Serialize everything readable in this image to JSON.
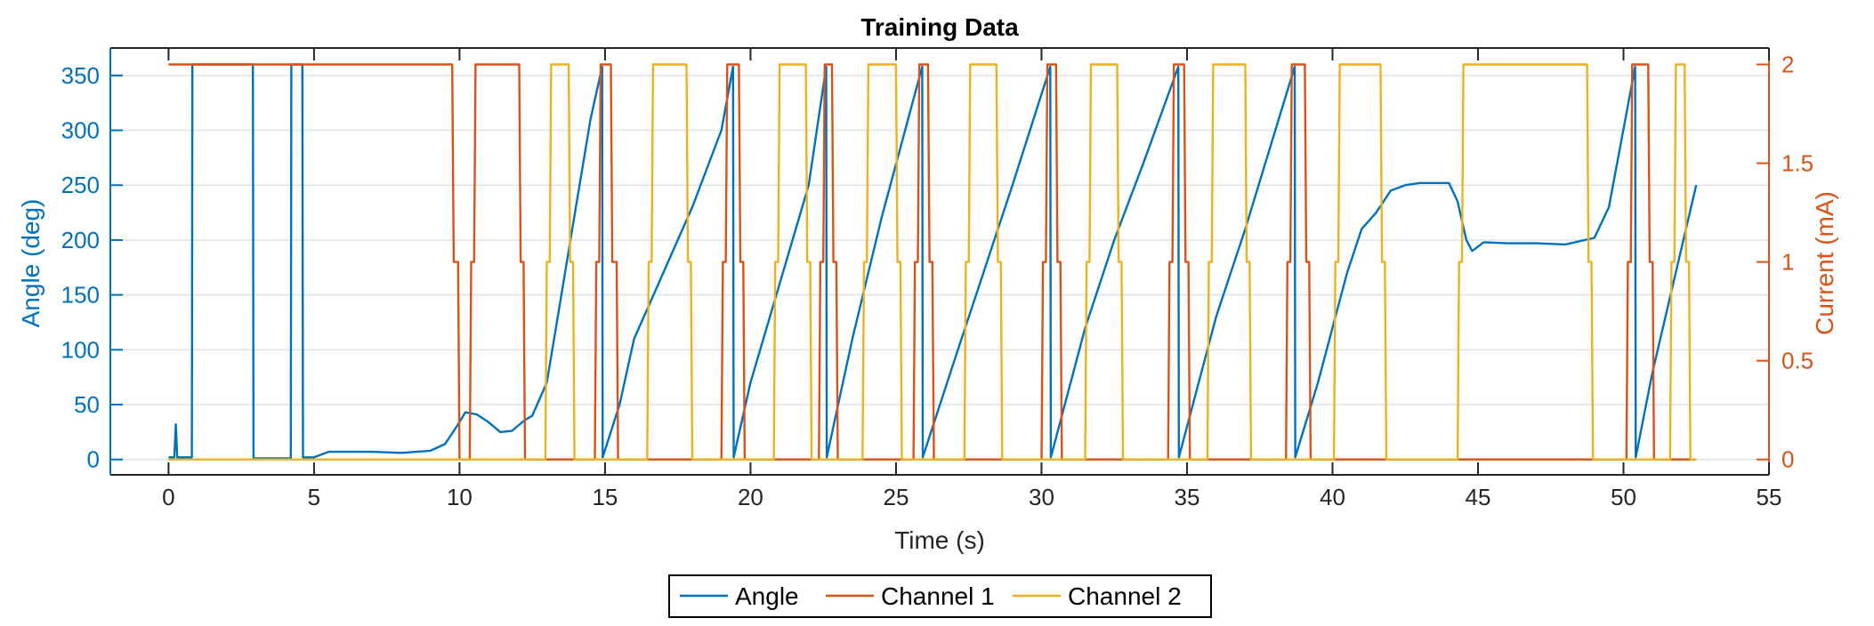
{
  "chart_data": {
    "type": "line",
    "title": "Training Data",
    "xlabel": "Time (s)",
    "ylabel_left": "Angle (deg)",
    "ylabel_right": "Current (mA)",
    "xlim": [
      -2,
      55
    ],
    "ylim_left": [
      -14,
      375
    ],
    "ylim_right": [
      -0.0778,
      2.0833
    ],
    "xticks": [
      0,
      5,
      10,
      15,
      20,
      25,
      30,
      35,
      40,
      45,
      50,
      55
    ],
    "yticks_left": [
      0,
      50,
      100,
      150,
      200,
      250,
      300,
      350
    ],
    "yticks_right": [
      0,
      0.5,
      1,
      1.5,
      2
    ],
    "yticks_right_labels": [
      "0",
      "0.5",
      "1",
      "1.5",
      "2"
    ],
    "grid": "horizontal",
    "legend_position": "bottom-outside",
    "colors": {
      "angle": "#0072BD",
      "channel1": "#D95319",
      "channel2": "#EDB120",
      "axis": "#262626"
    },
    "series": [
      {
        "name": "Angle",
        "axis": "left",
        "x": [
          0,
          0.2,
          0.25,
          0.3,
          0.35,
          0.8,
          0.82,
          2.9,
          2.92,
          4.2,
          4.22,
          4.6,
          4.62,
          5.0,
          5.5,
          7.0,
          8.0,
          9.0,
          9.5,
          9.9,
          10.2,
          10.6,
          11.0,
          11.4,
          11.8,
          12.2,
          12.5,
          13.0,
          13.5,
          14.0,
          14.5,
          14.9,
          14.92,
          15.5,
          16.0,
          16.5,
          17.0,
          18.0,
          19.0,
          19.4,
          19.42,
          20.0,
          21.0,
          22.0,
          22.6,
          22.62,
          23.5,
          24.5,
          25.9,
          25.92,
          27.0,
          28.0,
          29.0,
          30.3,
          30.32,
          31.5,
          32.5,
          33.5,
          34.7,
          34.72,
          36.0,
          37.0,
          38.7,
          38.72,
          39.5,
          40.5,
          41.0,
          41.5,
          42.0,
          42.5,
          43.0,
          44.0,
          44.3,
          44.6,
          44.8,
          45.2,
          46.0,
          47.0,
          48.0,
          48.5,
          49.0,
          49.5,
          50.4,
          50.42,
          51.0,
          52.5
        ],
        "values": [
          2,
          2,
          32,
          2,
          2,
          2,
          360,
          360,
          1,
          1,
          360,
          360,
          2,
          2,
          7,
          7,
          6,
          8,
          14,
          30,
          43,
          41,
          34,
          25,
          26,
          35,
          40,
          70,
          150,
          230,
          310,
          358,
          2,
          50,
          110,
          140,
          170,
          230,
          300,
          358,
          2,
          70,
          160,
          250,
          358,
          2,
          110,
          220,
          358,
          2,
          90,
          170,
          250,
          358,
          2,
          120,
          200,
          270,
          358,
          2,
          130,
          210,
          358,
          2,
          70,
          170,
          210,
          225,
          245,
          250,
          252,
          252,
          235,
          200,
          190,
          198,
          197,
          197,
          196,
          199,
          202,
          230,
          358,
          2,
          80,
          250
        ]
      },
      {
        "name": "Channel 1",
        "axis": "right",
        "x": [
          0,
          9.75,
          9.8,
          9.95,
          10.0,
          10.35,
          10.4,
          10.5,
          10.55,
          12.05,
          12.1,
          12.2,
          12.25,
          14.65,
          14.7,
          14.8,
          14.85,
          15.2,
          15.25,
          15.4,
          15.45,
          19.0,
          19.05,
          19.15,
          19.2,
          19.6,
          19.65,
          19.75,
          19.8,
          22.35,
          22.4,
          22.5,
          22.55,
          22.8,
          22.85,
          22.95,
          23.0,
          25.6,
          25.65,
          25.75,
          25.8,
          26.1,
          26.15,
          26.25,
          26.3,
          30.0,
          30.05,
          30.15,
          30.2,
          30.5,
          30.55,
          30.65,
          30.7,
          34.35,
          34.4,
          34.5,
          34.55,
          34.9,
          34.95,
          35.05,
          35.1,
          38.4,
          38.45,
          38.55,
          38.6,
          39.05,
          39.1,
          39.2,
          39.25,
          50.1,
          50.15,
          50.25,
          50.3,
          50.85,
          50.9,
          51.0,
          51.05,
          52.5
        ],
        "values": [
          2,
          2,
          1,
          1,
          0,
          0,
          1,
          1,
          2,
          2,
          1,
          1,
          0,
          0,
          1,
          1,
          2,
          2,
          1,
          1,
          0,
          0,
          1,
          1,
          2,
          2,
          1,
          1,
          0,
          0,
          1,
          1,
          2,
          2,
          1,
          1,
          0,
          0,
          1,
          1,
          2,
          2,
          1,
          1,
          0,
          0,
          1,
          1,
          2,
          2,
          1,
          1,
          0,
          0,
          1,
          1,
          2,
          2,
          1,
          1,
          0,
          0,
          1,
          1,
          2,
          2,
          1,
          1,
          0,
          0,
          1,
          1,
          2,
          2,
          1,
          1,
          0,
          0
        ]
      },
      {
        "name": "Channel 2",
        "axis": "right",
        "x": [
          0,
          12.95,
          13.0,
          13.1,
          13.15,
          13.75,
          13.8,
          13.9,
          13.95,
          16.45,
          16.5,
          16.6,
          16.65,
          17.8,
          17.85,
          17.95,
          18.0,
          20.8,
          20.85,
          20.95,
          21.0,
          21.9,
          21.95,
          22.05,
          22.1,
          23.85,
          23.9,
          24.0,
          24.05,
          25.0,
          25.05,
          25.15,
          25.2,
          27.35,
          27.4,
          27.5,
          27.55,
          28.45,
          28.5,
          28.6,
          28.65,
          31.5,
          31.55,
          31.65,
          31.7,
          32.6,
          32.65,
          32.75,
          32.8,
          35.7,
          35.75,
          35.85,
          35.9,
          37.0,
          37.05,
          37.15,
          37.2,
          40.05,
          40.1,
          40.2,
          40.25,
          41.65,
          41.7,
          41.8,
          41.85,
          44.3,
          44.35,
          44.45,
          44.5,
          48.75,
          48.8,
          48.9,
          48.95,
          51.6,
          51.65,
          51.75,
          51.8,
          52.1,
          52.15,
          52.25,
          52.3,
          52.5
        ],
        "values": [
          0,
          0,
          1,
          1,
          2,
          2,
          1,
          1,
          0,
          0,
          1,
          1,
          2,
          2,
          1,
          1,
          0,
          0,
          1,
          1,
          2,
          2,
          1,
          1,
          0,
          0,
          1,
          1,
          2,
          2,
          1,
          1,
          0,
          0,
          1,
          1,
          2,
          2,
          1,
          1,
          0,
          0,
          1,
          1,
          2,
          2,
          1,
          1,
          0,
          0,
          1,
          1,
          2,
          2,
          1,
          1,
          0,
          0,
          1,
          1,
          2,
          2,
          1,
          1,
          0,
          0,
          1,
          1,
          2,
          2,
          1,
          1,
          0,
          0,
          1,
          1,
          2,
          2,
          1,
          1,
          0,
          0
        ]
      }
    ]
  }
}
